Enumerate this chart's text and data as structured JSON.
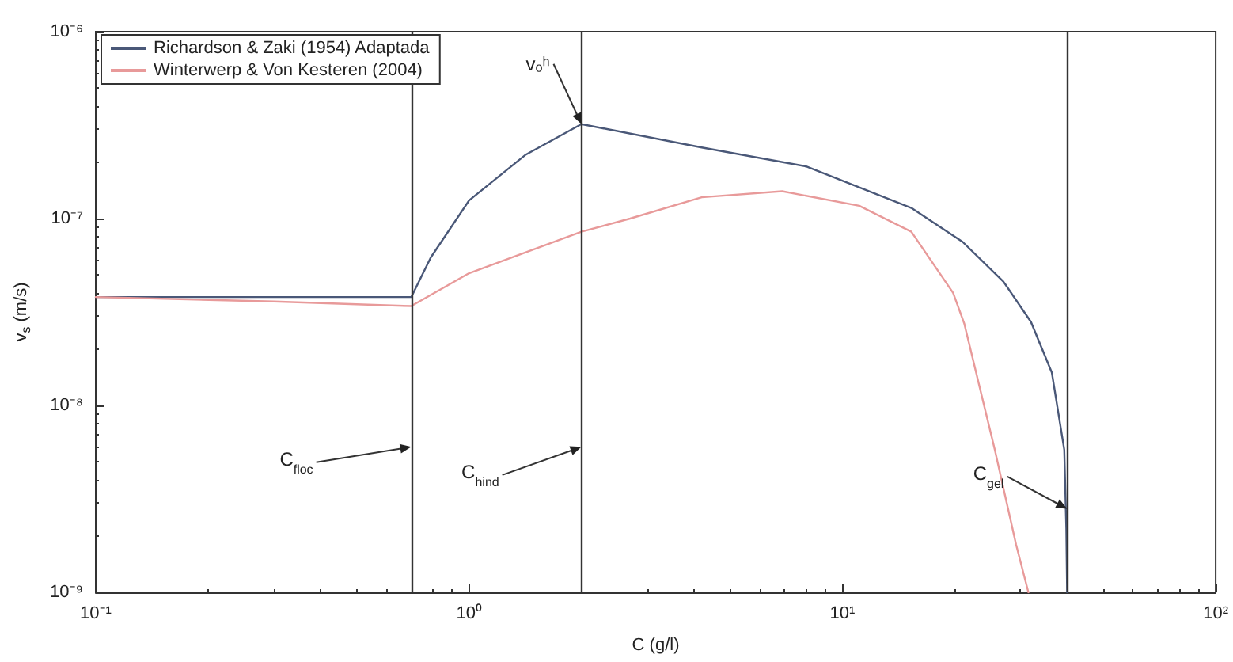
{
  "chart_data": {
    "type": "line",
    "xlabel": "C (g/l)",
    "ylabel": "v$_{s}$ (m/s)",
    "series": [
      {
        "name": "Richardson & Zaki (1954) Adaptada",
        "color": "#4a5878",
        "x": [
          0.1,
          0.3,
          0.7,
          0.79,
          1.0,
          1.42,
          2.0,
          4.2,
          8.0,
          15.3,
          21,
          27,
          32,
          36.4,
          39.3,
          39.8,
          40
        ],
        "values": [
          3.8e-08,
          3.8e-08,
          3.8e-08,
          6.2e-08,
          1.25e-07,
          2.2e-07,
          3.2e-07,
          2.4e-07,
          1.9e-07,
          1.14e-07,
          7.5e-08,
          4.6e-08,
          2.8e-08,
          1.5e-08,
          5.8e-09,
          2.2e-09,
          1e-09
        ]
      },
      {
        "name": "Winterwerp & Von Kesteren (2004)",
        "color": "#e89a9a",
        "x": [
          0.1,
          0.3,
          0.7,
          1.0,
          2.0,
          2.7,
          4.2,
          6.9,
          11.1,
          15.3,
          19.8,
          21.2,
          25.6,
          29.2,
          31.3,
          31.5
        ],
        "values": [
          3.8e-08,
          3.6e-08,
          3.4e-08,
          5.1e-08,
          8.5e-08,
          1e-07,
          1.3e-07,
          1.4e-07,
          1.17e-07,
          8.5e-08,
          4e-08,
          2.75e-08,
          5.8e-09,
          1.8e-09,
          1.05e-09,
          1e-09
        ]
      }
    ],
    "log": "xy",
    "xlim": [
      0.1,
      100
    ],
    "xticks": [
      {
        "value": 0.1,
        "label": "10⁻¹"
      },
      {
        "value": 1,
        "label": "10⁰"
      },
      {
        "value": 10,
        "label": "10¹"
      },
      {
        "value": 100,
        "label": "10²"
      }
    ],
    "ylim": [
      1e-09,
      1e-06
    ],
    "yticks": [
      {
        "value": 1e-09,
        "label": "10⁻⁹"
      },
      {
        "value": 1e-08,
        "label": "10⁻⁸"
      },
      {
        "value": 1e-07,
        "label": "10⁻⁷"
      },
      {
        "value": 1e-06,
        "label": "10⁻⁶"
      }
    ],
    "ref_lines": [
      {
        "axis": "x",
        "value": 0.7,
        "color": "#333333"
      },
      {
        "axis": "x",
        "value": 2,
        "color": "#333333"
      },
      {
        "axis": "x",
        "value": 40,
        "color": "#333333"
      }
    ],
    "annotations": [
      {
        "text": "vₒʰ",
        "x": 2,
        "y": 3.2e-07
      },
      {
        "text": "C$_{floc}$",
        "x": 0.7,
        "y": 6e-09
      },
      {
        "text": "C$_{hind}$",
        "x": 2,
        "y": 6e-09
      },
      {
        "text": "C$_{gel}$",
        "x": 40,
        "y": 2.8e-09
      }
    ],
    "legend": "top left",
    "grid": false,
    "marker": "none",
    "line_style": "solid"
  }
}
